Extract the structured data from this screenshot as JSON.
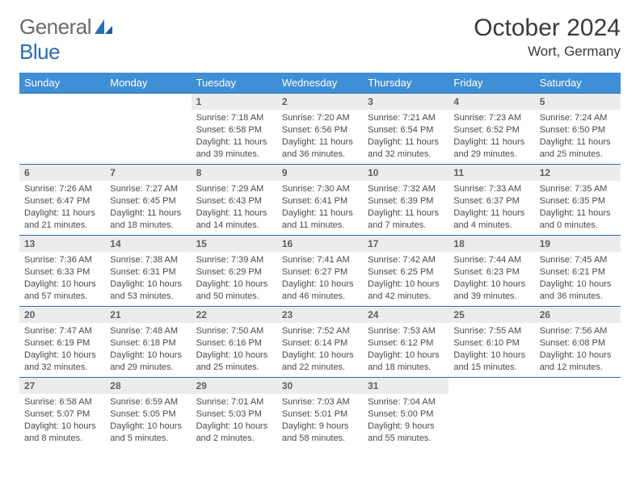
{
  "logo": {
    "text1": "General",
    "text2": "Blue"
  },
  "title": "October 2024",
  "location": "Wort, Germany",
  "colors": {
    "header_bg": "#3f8fd6",
    "header_fg": "#ffffff",
    "day_num_bg": "#ececec",
    "rule": "#2a6db8"
  },
  "weekdays": [
    "Sunday",
    "Monday",
    "Tuesday",
    "Wednesday",
    "Thursday",
    "Friday",
    "Saturday"
  ],
  "weeks": [
    [
      null,
      null,
      {
        "n": "1",
        "sunrise": "7:18 AM",
        "sunset": "6:58 PM",
        "day_h": "11",
        "day_m": "39"
      },
      {
        "n": "2",
        "sunrise": "7:20 AM",
        "sunset": "6:56 PM",
        "day_h": "11",
        "day_m": "36"
      },
      {
        "n": "3",
        "sunrise": "7:21 AM",
        "sunset": "6:54 PM",
        "day_h": "11",
        "day_m": "32"
      },
      {
        "n": "4",
        "sunrise": "7:23 AM",
        "sunset": "6:52 PM",
        "day_h": "11",
        "day_m": "29"
      },
      {
        "n": "5",
        "sunrise": "7:24 AM",
        "sunset": "6:50 PM",
        "day_h": "11",
        "day_m": "25"
      }
    ],
    [
      {
        "n": "6",
        "sunrise": "7:26 AM",
        "sunset": "6:47 PM",
        "day_h": "11",
        "day_m": "21"
      },
      {
        "n": "7",
        "sunrise": "7:27 AM",
        "sunset": "6:45 PM",
        "day_h": "11",
        "day_m": "18"
      },
      {
        "n": "8",
        "sunrise": "7:29 AM",
        "sunset": "6:43 PM",
        "day_h": "11",
        "day_m": "14"
      },
      {
        "n": "9",
        "sunrise": "7:30 AM",
        "sunset": "6:41 PM",
        "day_h": "11",
        "day_m": "11"
      },
      {
        "n": "10",
        "sunrise": "7:32 AM",
        "sunset": "6:39 PM",
        "day_h": "11",
        "day_m": "7"
      },
      {
        "n": "11",
        "sunrise": "7:33 AM",
        "sunset": "6:37 PM",
        "day_h": "11",
        "day_m": "4"
      },
      {
        "n": "12",
        "sunrise": "7:35 AM",
        "sunset": "6:35 PM",
        "day_h": "11",
        "day_m": "0"
      }
    ],
    [
      {
        "n": "13",
        "sunrise": "7:36 AM",
        "sunset": "6:33 PM",
        "day_h": "10",
        "day_m": "57"
      },
      {
        "n": "14",
        "sunrise": "7:38 AM",
        "sunset": "6:31 PM",
        "day_h": "10",
        "day_m": "53"
      },
      {
        "n": "15",
        "sunrise": "7:39 AM",
        "sunset": "6:29 PM",
        "day_h": "10",
        "day_m": "50"
      },
      {
        "n": "16",
        "sunrise": "7:41 AM",
        "sunset": "6:27 PM",
        "day_h": "10",
        "day_m": "46"
      },
      {
        "n": "17",
        "sunrise": "7:42 AM",
        "sunset": "6:25 PM",
        "day_h": "10",
        "day_m": "42"
      },
      {
        "n": "18",
        "sunrise": "7:44 AM",
        "sunset": "6:23 PM",
        "day_h": "10",
        "day_m": "39"
      },
      {
        "n": "19",
        "sunrise": "7:45 AM",
        "sunset": "6:21 PM",
        "day_h": "10",
        "day_m": "36"
      }
    ],
    [
      {
        "n": "20",
        "sunrise": "7:47 AM",
        "sunset": "6:19 PM",
        "day_h": "10",
        "day_m": "32"
      },
      {
        "n": "21",
        "sunrise": "7:48 AM",
        "sunset": "6:18 PM",
        "day_h": "10",
        "day_m": "29"
      },
      {
        "n": "22",
        "sunrise": "7:50 AM",
        "sunset": "6:16 PM",
        "day_h": "10",
        "day_m": "25"
      },
      {
        "n": "23",
        "sunrise": "7:52 AM",
        "sunset": "6:14 PM",
        "day_h": "10",
        "day_m": "22"
      },
      {
        "n": "24",
        "sunrise": "7:53 AM",
        "sunset": "6:12 PM",
        "day_h": "10",
        "day_m": "18"
      },
      {
        "n": "25",
        "sunrise": "7:55 AM",
        "sunset": "6:10 PM",
        "day_h": "10",
        "day_m": "15"
      },
      {
        "n": "26",
        "sunrise": "7:56 AM",
        "sunset": "6:08 PM",
        "day_h": "10",
        "day_m": "12"
      }
    ],
    [
      {
        "n": "27",
        "sunrise": "6:58 AM",
        "sunset": "5:07 PM",
        "day_h": "10",
        "day_m": "8"
      },
      {
        "n": "28",
        "sunrise": "6:59 AM",
        "sunset": "5:05 PM",
        "day_h": "10",
        "day_m": "5"
      },
      {
        "n": "29",
        "sunrise": "7:01 AM",
        "sunset": "5:03 PM",
        "day_h": "10",
        "day_m": "2"
      },
      {
        "n": "30",
        "sunrise": "7:03 AM",
        "sunset": "5:01 PM",
        "day_h": "9",
        "day_m": "58"
      },
      {
        "n": "31",
        "sunrise": "7:04 AM",
        "sunset": "5:00 PM",
        "day_h": "9",
        "day_m": "55"
      },
      null,
      null
    ]
  ],
  "labels": {
    "sunrise": "Sunrise: ",
    "sunset": "Sunset: ",
    "daylight1": "Daylight: ",
    "daylight2": " hours and ",
    "daylight3": " minutes."
  }
}
